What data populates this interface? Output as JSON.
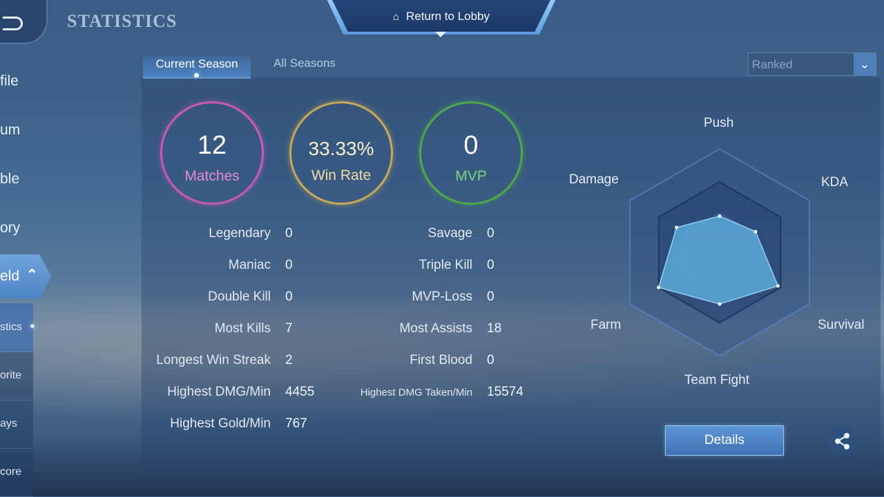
{
  "header": {
    "title": "STATISTICS",
    "return_label": "Return to Lobby"
  },
  "sidebar": {
    "items": [
      {
        "label": "file"
      },
      {
        "label": "um"
      },
      {
        "label": "ble"
      },
      {
        "label": "ory"
      }
    ],
    "active_item": {
      "label": "eld"
    },
    "sub_items": [
      {
        "label": "stics"
      },
      {
        "label": "orite"
      },
      {
        "label": "ays"
      },
      {
        "label": "core"
      }
    ]
  },
  "tabs": {
    "current": "Current Season",
    "all": "All Seasons"
  },
  "mode_dropdown": {
    "selected": "Ranked"
  },
  "summary": {
    "matches": {
      "value": "12",
      "label": "Matches",
      "color": "#c85ab3"
    },
    "win_rate": {
      "value": "33.33%",
      "label": "Win Rate",
      "color": "#c7a85a"
    },
    "mvp": {
      "value": "0",
      "label": "MVP",
      "color": "#4ea84c"
    }
  },
  "stats_left": [
    {
      "label": "Legendary",
      "value": "0"
    },
    {
      "label": "Maniac",
      "value": "0"
    },
    {
      "label": "Double Kill",
      "value": "0"
    },
    {
      "label": "Most Kills",
      "value": "7"
    },
    {
      "label": "Longest Win Streak",
      "value": "2"
    },
    {
      "label": "Highest DMG/Min",
      "value": "4455"
    },
    {
      "label": "Highest Gold/Min",
      "value": "767"
    }
  ],
  "stats_right": [
    {
      "label": "Savage",
      "value": "0"
    },
    {
      "label": "Triple Kill",
      "value": "0"
    },
    {
      "label": "MVP-Loss",
      "value": "0"
    },
    {
      "label": "Most Assists",
      "value": "18"
    },
    {
      "label": "First Blood",
      "value": "0"
    },
    {
      "label": "Highest DMG Taken/Min",
      "value": "15574"
    }
  ],
  "radar": {
    "axes": [
      "Push",
      "KDA",
      "Survival",
      "Team Fight",
      "Farm",
      "Damage"
    ],
    "values": [
      0.35,
      0.4,
      0.65,
      0.5,
      0.68,
      0.48
    ],
    "fill_color": "#5fb2e0"
  },
  "details_label": "Details"
}
